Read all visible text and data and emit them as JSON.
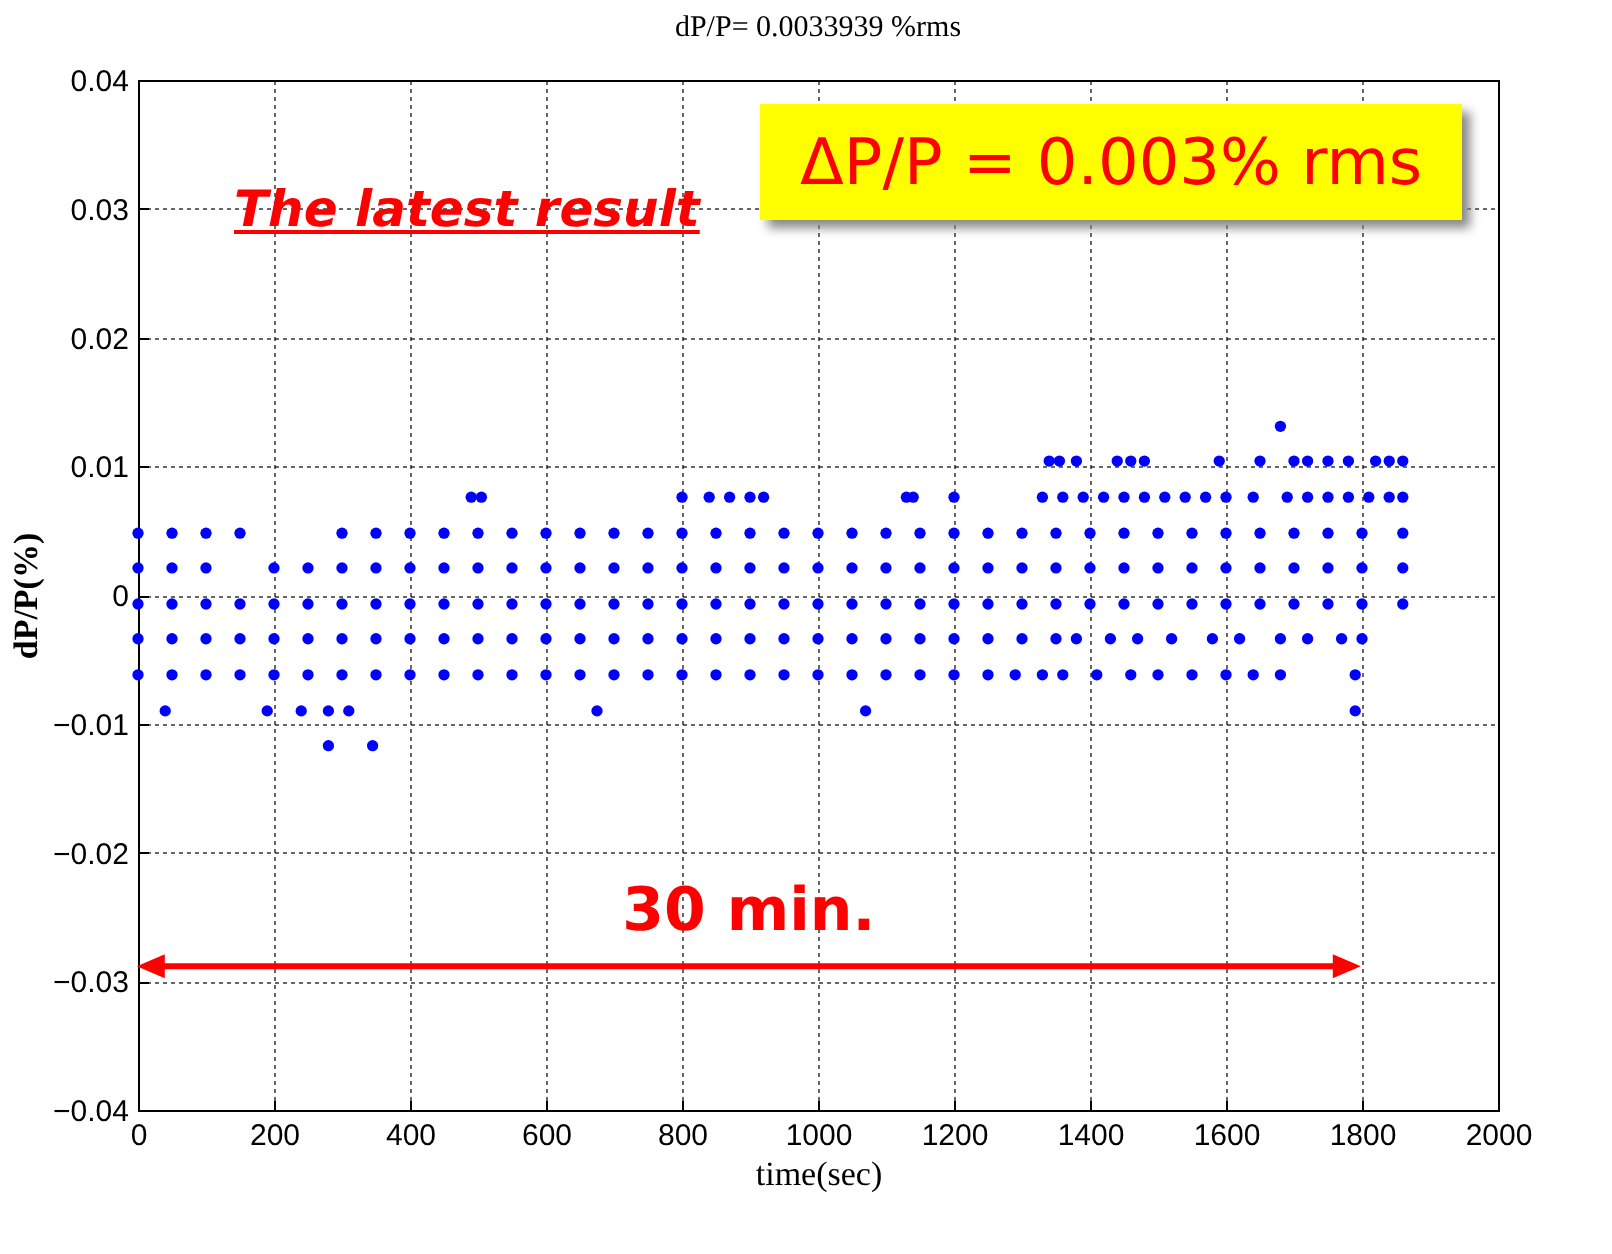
{
  "chart_data": {
    "type": "scatter",
    "title": "dP/P= 0.0033939 %rms",
    "xlabel": "time(sec)",
    "ylabel": "dP/P(%)",
    "annotations": [
      "The latest result",
      "ΔP/P = 0.003% rms",
      "30 min."
    ],
    "xlim": [
      0,
      2000
    ],
    "xticks": [
      0,
      200,
      400,
      600,
      800,
      1000,
      1200,
      1400,
      1600,
      1800,
      2000
    ],
    "ylim": [
      -0.04,
      0.04
    ],
    "yticks": [
      -0.04,
      -0.03,
      -0.02,
      -0.01,
      0,
      0.01,
      0.02,
      0.03,
      0.04
    ],
    "grid": true,
    "marker": "circle",
    "series": [
      {
        "color": "#0000ff",
        "x": [
          0,
          50,
          100,
          150,
          300,
          350,
          400,
          450,
          500,
          550,
          600,
          650,
          700,
          750,
          800,
          850,
          900,
          950,
          1000,
          1050,
          1100,
          1150,
          1200,
          1250,
          1300,
          1350,
          1400,
          1450,
          1500,
          1550,
          1600,
          1650,
          1700,
          1750,
          1800,
          1860
        ],
        "values": [
          0.0048,
          0.0048,
          0.0048,
          0.0048,
          0.0048,
          0.0048,
          0.0048,
          0.0048,
          0.0048,
          0.0048,
          0.0048,
          0.0048,
          0.0048,
          0.0048,
          0.0048,
          0.0048,
          0.0048,
          0.0048,
          0.0048,
          0.0048,
          0.0048,
          0.0048,
          0.0048,
          0.0048,
          0.0048,
          0.0048,
          0.0048,
          0.0048,
          0.0048,
          0.0048,
          0.0048,
          0.0048,
          0.0048,
          0.0048,
          0.0048,
          0.0048
        ]
      },
      {
        "color": "#0000ff",
        "x": [
          0,
          50,
          100,
          200,
          250,
          300,
          350,
          400,
          450,
          500,
          550,
          600,
          650,
          700,
          750,
          800,
          850,
          900,
          950,
          1000,
          1050,
          1100,
          1150,
          1200,
          1250,
          1300,
          1350,
          1400,
          1450,
          1500,
          1550,
          1600,
          1650,
          1700,
          1750,
          1800,
          1860
        ],
        "values": [
          0.0021,
          0.0021,
          0.0021,
          0.0021,
          0.0021,
          0.0021,
          0.0021,
          0.0021,
          0.0021,
          0.0021,
          0.0021,
          0.0021,
          0.0021,
          0.0021,
          0.0021,
          0.0021,
          0.0021,
          0.0021,
          0.0021,
          0.0021,
          0.0021,
          0.0021,
          0.0021,
          0.0021,
          0.0021,
          0.0021,
          0.0021,
          0.0021,
          0.0021,
          0.0021,
          0.0021,
          0.0021,
          0.0021,
          0.0021,
          0.0021,
          0.0021,
          0.0021
        ]
      },
      {
        "color": "#0000ff",
        "x": [
          0,
          50,
          100,
          150,
          200,
          250,
          300,
          350,
          400,
          450,
          500,
          550,
          600,
          650,
          700,
          750,
          800,
          850,
          900,
          950,
          1000,
          1050,
          1100,
          1150,
          1200,
          1250,
          1300,
          1350,
          1400,
          1450,
          1500,
          1550,
          1600,
          1650,
          1700,
          1750,
          1800,
          1860
        ],
        "values": [
          -0.0007,
          -0.0007,
          -0.0007,
          -0.0007,
          -0.0007,
          -0.0007,
          -0.0007,
          -0.0007,
          -0.0007,
          -0.0007,
          -0.0007,
          -0.0007,
          -0.0007,
          -0.0007,
          -0.0007,
          -0.0007,
          -0.0007,
          -0.0007,
          -0.0007,
          -0.0007,
          -0.0007,
          -0.0007,
          -0.0007,
          -0.0007,
          -0.0007,
          -0.0007,
          -0.0007,
          -0.0007,
          -0.0007,
          -0.0007,
          -0.0007,
          -0.0007,
          -0.0007,
          -0.0007,
          -0.0007,
          -0.0007,
          -0.0007,
          -0.0007
        ]
      },
      {
        "color": "#0000ff",
        "x": [
          0,
          50,
          100,
          150,
          200,
          250,
          300,
          350,
          400,
          450,
          500,
          550,
          600,
          650,
          700,
          750,
          800,
          850,
          900,
          950,
          1000,
          1050,
          1100,
          1150,
          1200,
          1250,
          1300,
          1350,
          1380,
          1430,
          1470,
          1520,
          1580,
          1620,
          1680,
          1720,
          1770,
          1800
        ],
        "values": [
          -0.0034,
          -0.0034,
          -0.0034,
          -0.0034,
          -0.0034,
          -0.0034,
          -0.0034,
          -0.0034,
          -0.0034,
          -0.0034,
          -0.0034,
          -0.0034,
          -0.0034,
          -0.0034,
          -0.0034,
          -0.0034,
          -0.0034,
          -0.0034,
          -0.0034,
          -0.0034,
          -0.0034,
          -0.0034,
          -0.0034,
          -0.0034,
          -0.0034,
          -0.0034,
          -0.0034,
          -0.0034,
          -0.0034,
          -0.0034,
          -0.0034,
          -0.0034,
          -0.0034,
          -0.0034,
          -0.0034,
          -0.0034,
          -0.0034,
          -0.0034
        ]
      },
      {
        "color": "#0000ff",
        "x": [
          0,
          50,
          100,
          150,
          200,
          250,
          300,
          350,
          400,
          450,
          500,
          550,
          600,
          650,
          700,
          750,
          800,
          850,
          900,
          950,
          1000,
          1050,
          1100,
          1150,
          1200,
          1250,
          1290,
          1330,
          1360,
          1410,
          1460,
          1500,
          1550,
          1600,
          1640,
          1680,
          1790
        ],
        "values": [
          -0.0062,
          -0.0062,
          -0.0062,
          -0.0062,
          -0.0062,
          -0.0062,
          -0.0062,
          -0.0062,
          -0.0062,
          -0.0062,
          -0.0062,
          -0.0062,
          -0.0062,
          -0.0062,
          -0.0062,
          -0.0062,
          -0.0062,
          -0.0062,
          -0.0062,
          -0.0062,
          -0.0062,
          -0.0062,
          -0.0062,
          -0.0062,
          -0.0062,
          -0.0062,
          -0.0062,
          -0.0062,
          -0.0062,
          -0.0062,
          -0.0062,
          -0.0062,
          -0.0062,
          -0.0062,
          -0.0062,
          -0.0062,
          -0.0062
        ]
      },
      {
        "color": "#0000ff",
        "x": [
          40,
          190,
          240,
          280,
          310,
          675,
          1070,
          1790
        ],
        "values": [
          -0.009,
          -0.009,
          -0.009,
          -0.009,
          -0.009,
          -0.009,
          -0.009,
          -0.009
        ]
      },
      {
        "color": "#0000ff",
        "x": [
          280,
          345
        ],
        "values": [
          -0.0117,
          -0.0117
        ]
      },
      {
        "color": "#0000ff",
        "x": [
          490,
          505,
          800,
          840,
          870,
          900,
          920,
          1130,
          1140,
          1200,
          1330,
          1360,
          1390,
          1420,
          1450,
          1480,
          1510,
          1540,
          1570,
          1600,
          1640,
          1690,
          1720,
          1750,
          1780,
          1810,
          1840,
          1860
        ],
        "values": [
          0.0076,
          0.0076,
          0.0076,
          0.0076,
          0.0076,
          0.0076,
          0.0076,
          0.0076,
          0.0076,
          0.0076,
          0.0076,
          0.0076,
          0.0076,
          0.0076,
          0.0076,
          0.0076,
          0.0076,
          0.0076,
          0.0076,
          0.0076,
          0.0076,
          0.0076,
          0.0076,
          0.0076,
          0.0076,
          0.0076,
          0.0076,
          0.0076
        ]
      },
      {
        "color": "#0000ff",
        "x": [
          1340,
          1355,
          1380,
          1440,
          1460,
          1480,
          1590,
          1650,
          1700,
          1720,
          1750,
          1780,
          1820,
          1840,
          1860
        ],
        "values": [
          0.0104,
          0.0104,
          0.0104,
          0.0104,
          0.0104,
          0.0104,
          0.0104,
          0.0104,
          0.0104,
          0.0104,
          0.0104,
          0.0104,
          0.0104,
          0.0104,
          0.0104
        ]
      },
      {
        "color": "#0000ff",
        "x": [
          1680
        ],
        "values": [
          0.0131
        ]
      }
    ]
  }
}
